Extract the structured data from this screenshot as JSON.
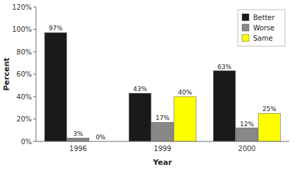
{
  "chart_data": {
    "type": "bar",
    "x_label": "Year",
    "y_label": "Percent",
    "categories": [
      "1996",
      "1999",
      "2000"
    ],
    "series": [
      {
        "name": "Better",
        "color": "#1a1a1a",
        "values": [
          97,
          43,
          63
        ],
        "value_labels": [
          "97%",
          "43%",
          "63%"
        ]
      },
      {
        "name": "Worse",
        "color": "#888888",
        "values": [
          3,
          17,
          12
        ],
        "value_labels": [
          "3%",
          "17%",
          "12%"
        ]
      },
      {
        "name": "Same",
        "color": "#ffff00",
        "values": [
          0,
          40,
          25
        ],
        "value_labels": [
          "0%",
          "40%",
          "25%"
        ]
      }
    ],
    "ylim": [
      0,
      120
    ],
    "yticks": [
      {
        "value": 0,
        "label": "0%"
      },
      {
        "value": 20,
        "label": "20%"
      },
      {
        "value": 40,
        "label": "40%"
      },
      {
        "value": 60,
        "label": "60%"
      },
      {
        "value": 80,
        "label": "80%"
      },
      {
        "value": 100,
        "label": "100%"
      },
      {
        "value": 120,
        "label": "120%"
      }
    ],
    "data_labels": true,
    "legend": "upper right",
    "grid": false
  }
}
